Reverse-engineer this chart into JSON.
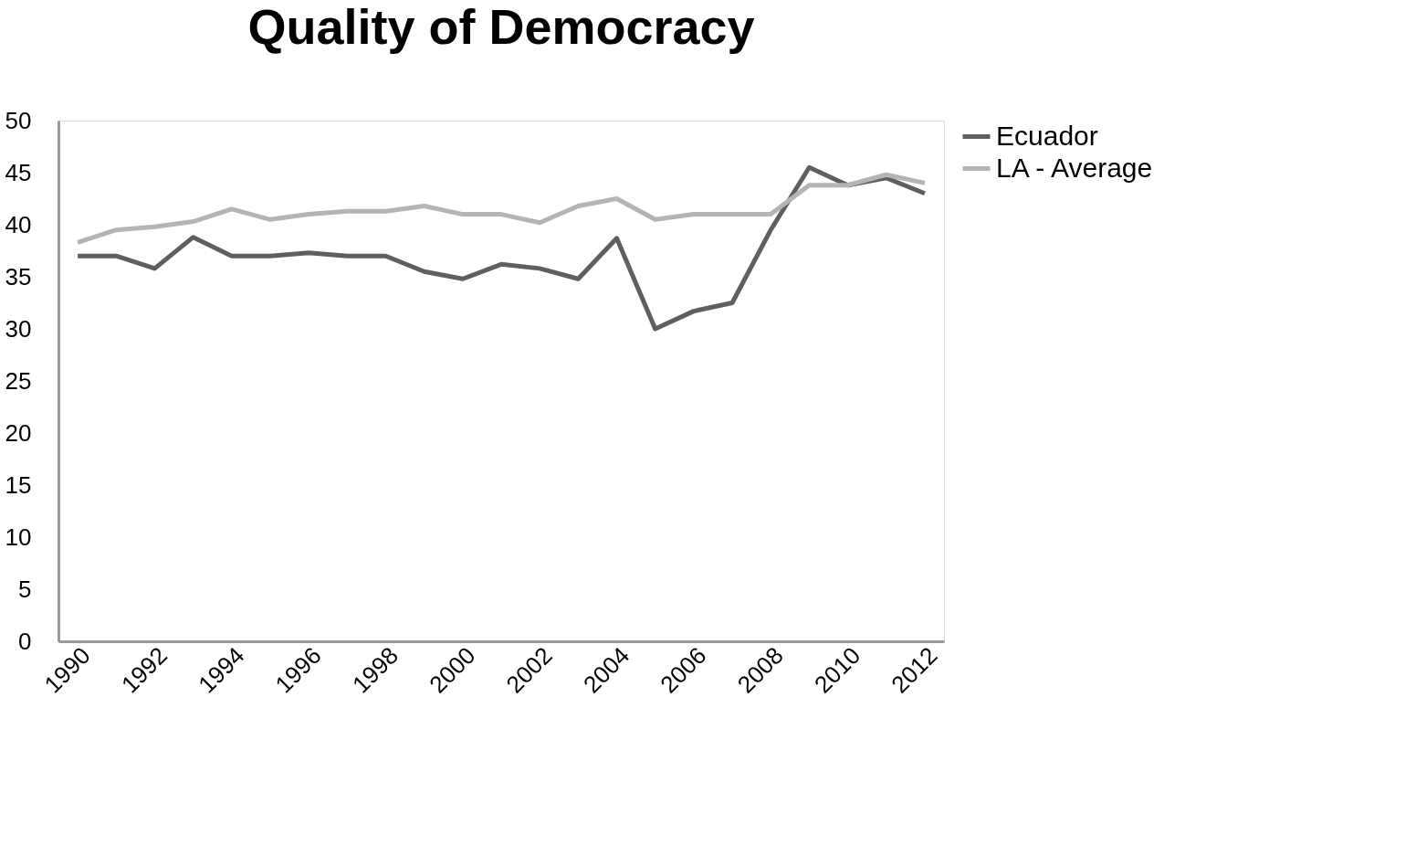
{
  "chart_data": {
    "type": "line",
    "title": "Quality of Democracy",
    "categories": [
      "1990",
      null,
      "1992",
      null,
      "1994",
      null,
      "1996",
      null,
      "1998",
      null,
      "2000",
      null,
      "2002",
      null,
      "2004",
      null,
      "2006",
      null,
      "2008",
      null,
      "2010",
      null,
      "2012"
    ],
    "series": [
      {
        "name": "Ecuador",
        "color": "#5f5f5f",
        "values": [
          37,
          37,
          35.8,
          38.8,
          37,
          37,
          37.3,
          37,
          37,
          35.5,
          34.8,
          36.2,
          35.8,
          34.8,
          38.7,
          30,
          31.7,
          32.5,
          39.5,
          45.5,
          43.8,
          44.5,
          43
        ]
      },
      {
        "name": "LA - Average",
        "color": "#b4b4b4",
        "values": [
          38.3,
          39.5,
          39.8,
          40.3,
          41.5,
          40.5,
          41,
          41.3,
          41.3,
          41.8,
          41,
          41,
          40.2,
          41.8,
          42.5,
          40.5,
          41,
          41,
          41,
          43.8,
          43.8,
          44.8,
          44
        ]
      }
    ],
    "ylim": [
      0,
      50
    ],
    "yticks": [
      0,
      5,
      10,
      15,
      20,
      25,
      30,
      35,
      40,
      45,
      50
    ],
    "grid": false,
    "legend": "right",
    "marker": "none",
    "line_style": "solid"
  }
}
